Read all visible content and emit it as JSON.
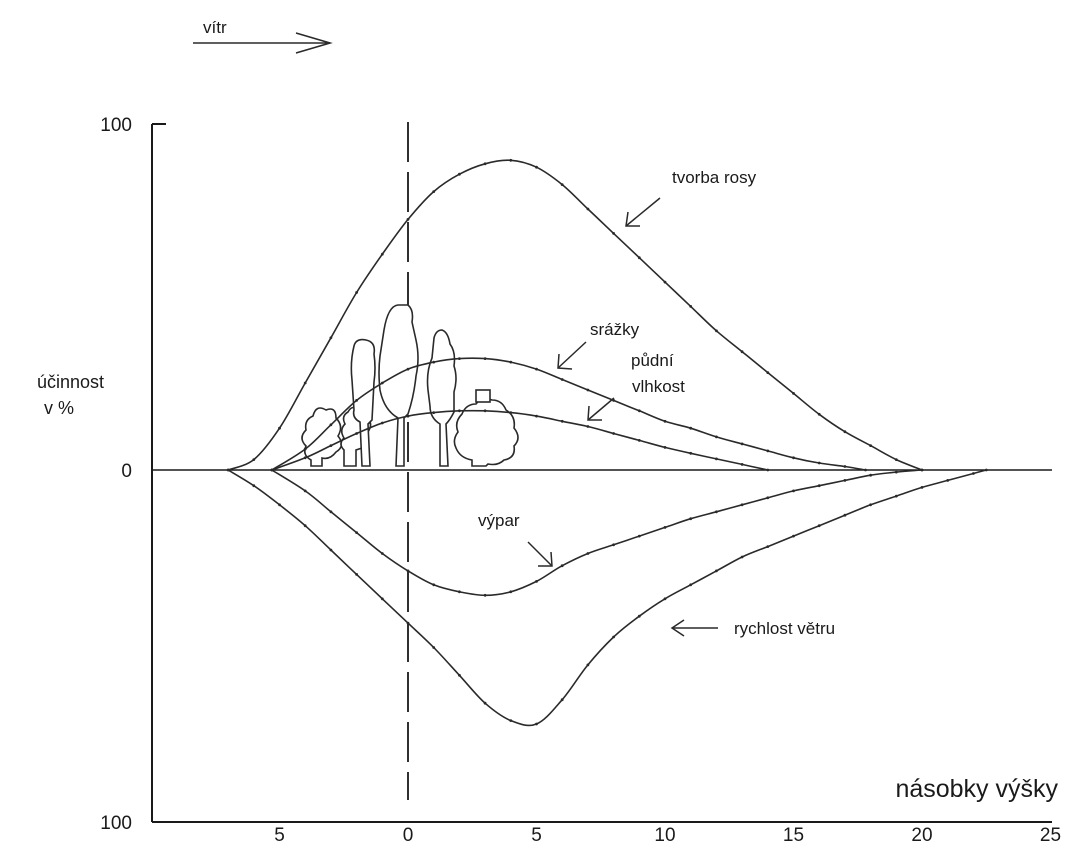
{
  "chart_data": {
    "type": "line",
    "wind_label": "vítr",
    "xlabel": "násobky výšky",
    "ylabel": [
      "účinnost",
      "v %"
    ],
    "xlim": [
      -10,
      25
    ],
    "ylim": [
      -100,
      100
    ],
    "y_ticks": [
      {
        "value": 100,
        "label": "100"
      },
      {
        "value": 0,
        "label": "0"
      },
      {
        "value": -100,
        "label": "100"
      }
    ],
    "x_ticks": [
      {
        "value": -5,
        "label": "5"
      },
      {
        "value": 0,
        "label": "0"
      },
      {
        "value": 5,
        "label": "5"
      },
      {
        "value": 10,
        "label": "10"
      },
      {
        "value": 15,
        "label": "15"
      },
      {
        "value": 20,
        "label": "20"
      },
      {
        "value": 25,
        "label": "25"
      }
    ],
    "series": [
      {
        "name": "tvorba rosy",
        "label_lines": [
          "tvorba rosy"
        ],
        "x": [
          -7,
          -6,
          -5,
          -4,
          -3,
          -2,
          -1,
          0,
          1,
          2,
          3,
          4,
          5,
          6,
          7,
          8,
          9,
          10,
          11,
          12,
          13,
          14,
          15,
          16,
          17,
          18,
          19,
          20
        ],
        "y": [
          0,
          3,
          12,
          25,
          38,
          51,
          62,
          72,
          80,
          85,
          88,
          89,
          87,
          82,
          75,
          68,
          61,
          54,
          47,
          40,
          34,
          28,
          22,
          16,
          11,
          7,
          3,
          0
        ]
      },
      {
        "name": "srážky",
        "label_lines": [
          "srážky"
        ],
        "x": [
          -5.3,
          -4,
          -3,
          -2,
          -1,
          0,
          1,
          2,
          3,
          4,
          5,
          6,
          7,
          8,
          9,
          10,
          11,
          12,
          13,
          14,
          15,
          16,
          17,
          17.8
        ],
        "y": [
          0,
          6,
          13,
          20,
          25,
          29,
          31,
          32,
          32,
          31,
          29,
          26,
          23,
          20,
          17,
          14,
          12,
          9.5,
          7.5,
          5.5,
          3.5,
          2,
          1,
          0
        ]
      },
      {
        "name": "půdní vlhkost",
        "label_lines": [
          "půdní",
          "vlhkost"
        ],
        "x": [
          -5.3,
          -4,
          -3,
          -2,
          -1,
          0,
          1,
          2,
          3,
          4,
          5,
          6,
          7,
          8,
          9,
          10,
          11,
          12,
          13,
          14
        ],
        "y": [
          0,
          3.5,
          7,
          10.5,
          13.5,
          15.5,
          16.5,
          17,
          17,
          16.5,
          15.5,
          14,
          12.5,
          10.5,
          8.5,
          6.5,
          4.8,
          3.2,
          1.6,
          0
        ]
      },
      {
        "name": "výpar",
        "label_lines": [
          "výpar"
        ],
        "x": [
          -5.3,
          -4,
          -3,
          -2,
          -1,
          0,
          1,
          2,
          3,
          4,
          5,
          6,
          7,
          8,
          9,
          10,
          11,
          12,
          13,
          14,
          15,
          16,
          17,
          18,
          19,
          20
        ],
        "y": [
          0,
          -6,
          -12,
          -18,
          -24,
          -29,
          -33,
          -35,
          -36,
          -35,
          -32,
          -27.5,
          -24,
          -21.5,
          -19,
          -16.5,
          -14,
          -12,
          -10,
          -8,
          -6,
          -4.5,
          -3,
          -1.5,
          -0.6,
          0
        ]
      },
      {
        "name": "rychlost větru",
        "label_lines": [
          "rychlost větru"
        ],
        "x": [
          -7,
          -6,
          -5,
          -4,
          -3,
          -2,
          -1,
          0,
          1,
          2,
          3,
          4,
          5,
          6,
          7,
          8,
          9,
          10,
          11,
          12,
          13,
          14,
          15,
          16,
          17,
          18,
          19,
          20,
          21,
          22,
          22.5
        ],
        "y": [
          0,
          -4.5,
          -10,
          -16,
          -23,
          -30,
          -37,
          -44,
          -51,
          -59,
          -67,
          -72,
          -73,
          -66,
          -56,
          -48,
          -42,
          -37,
          -33,
          -29,
          -25,
          -22,
          -19,
          -16,
          -13,
          -10,
          -7.5,
          -5,
          -3,
          -1,
          0
        ]
      }
    ]
  }
}
